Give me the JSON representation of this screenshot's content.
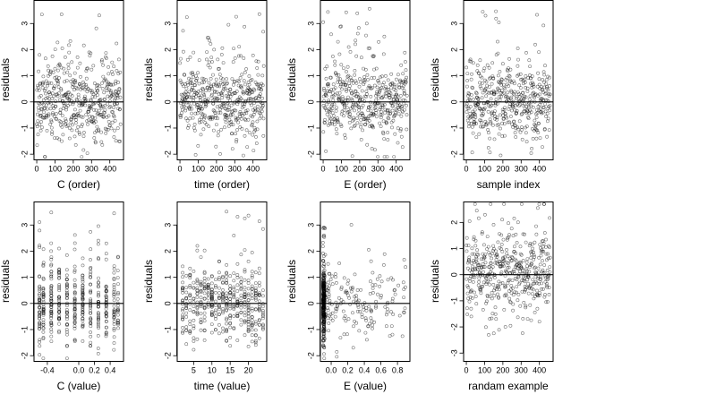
{
  "chart_data": [
    {
      "type": "scatter",
      "xlabel": "C (order)",
      "ylabel": "residuals",
      "xlim": [
        -15,
        475
      ],
      "ylim": [
        -2.2,
        3.9
      ],
      "xticks": [
        0,
        100,
        200,
        300,
        400
      ],
      "xtick_labels": [
        "0",
        "100",
        "200",
        "300",
        "400"
      ],
      "yticks": [
        -2,
        -1,
        0,
        1,
        2,
        3
      ],
      "ytick_labels": [
        "-2",
        "-1",
        "0",
        "1",
        "2",
        "3"
      ],
      "reference_line": 0,
      "x_gen": "order",
      "seed": 11,
      "n": 460
    },
    {
      "type": "scatter",
      "xlabel": "time (order)",
      "ylabel": "residuals",
      "xlim": [
        -15,
        475
      ],
      "ylim": [
        -2.2,
        3.9
      ],
      "xticks": [
        0,
        100,
        200,
        300,
        400
      ],
      "xtick_labels": [
        "0",
        "100",
        "200",
        "300",
        "400"
      ],
      "yticks": [
        -2,
        -1,
        0,
        1,
        2,
        3
      ],
      "ytick_labels": [
        "-2",
        "-1",
        "0",
        "1",
        "2",
        "3"
      ],
      "reference_line": 0,
      "x_gen": "order",
      "seed": 23,
      "n": 460
    },
    {
      "type": "scatter",
      "xlabel": "E (order)",
      "ylabel": "residuals",
      "xlim": [
        -15,
        475
      ],
      "ylim": [
        -2.2,
        3.9
      ],
      "xticks": [
        0,
        100,
        200,
        300,
        400
      ],
      "xtick_labels": [
        "0",
        "100",
        "200",
        "300",
        "400"
      ],
      "yticks": [
        -2,
        -1,
        0,
        1,
        2,
        3
      ],
      "ytick_labels": [
        "-2",
        "-1",
        "0",
        "1",
        "2",
        "3"
      ],
      "reference_line": 0,
      "x_gen": "order",
      "seed": 37,
      "n": 460
    },
    {
      "type": "scatter",
      "xlabel": "sample index",
      "ylabel": "residuals",
      "xlim": [
        -15,
        475
      ],
      "ylim": [
        -2.2,
        3.9
      ],
      "xticks": [
        0,
        100,
        200,
        300,
        400
      ],
      "xtick_labels": [
        "0",
        "100",
        "200",
        "300",
        "400"
      ],
      "yticks": [
        -2,
        -1,
        0,
        1,
        2,
        3
      ],
      "ytick_labels": [
        "-2",
        "-1",
        "0",
        "1",
        "2",
        "3"
      ],
      "reference_line": 0,
      "x_gen": "order",
      "seed": 51,
      "n": 460
    },
    {
      "type": "scatter",
      "xlabel": "C (value)",
      "ylabel": "residuals",
      "xlim": [
        -0.57,
        0.57
      ],
      "ylim": [
        -2.2,
        3.9
      ],
      "xticks": [
        -0.4,
        0.0,
        0.2,
        0.4
      ],
      "xtick_labels": [
        "-0.4",
        "0.0",
        "0.2",
        "0.4"
      ],
      "yticks": [
        -2,
        -1,
        0,
        1,
        2,
        3
      ],
      "ytick_labels": [
        "-2",
        "-1",
        "0",
        "1",
        "2",
        "3"
      ],
      "reference_line": 0,
      "x_gen": "discrete",
      "x_levels": [
        -0.5,
        -0.45,
        -0.35,
        -0.25,
        -0.15,
        -0.05,
        0.05,
        0.15,
        0.25,
        0.35,
        0.45,
        0.5
      ],
      "seed": 67,
      "n": 460
    },
    {
      "type": "scatter",
      "xlabel": "time (value)",
      "ylabel": "residuals",
      "xlim": [
        0.5,
        25
      ],
      "ylim": [
        -2.2,
        3.9
      ],
      "xticks": [
        5,
        10,
        15,
        20
      ],
      "xtick_labels": [
        "5",
        "10",
        "15",
        "20"
      ],
      "yticks": [
        -2,
        -1,
        0,
        1,
        2,
        3
      ],
      "ytick_labels": [
        "-2",
        "-1",
        "0",
        "1",
        "2",
        "3"
      ],
      "reference_line": 0,
      "x_gen": "discrete",
      "x_levels": [
        2,
        3,
        4,
        5,
        6,
        7,
        8,
        9,
        10,
        11,
        12,
        13,
        14,
        15,
        16,
        17,
        18,
        19,
        20,
        21,
        22,
        23,
        24
      ],
      "seed": 79,
      "n": 460
    },
    {
      "type": "scatter",
      "xlabel": "E (value)",
      "ylabel": "residuals",
      "xlim": [
        -0.13,
        0.95
      ],
      "ylim": [
        -2.2,
        3.9
      ],
      "xticks": [
        0.0,
        0.2,
        0.4,
        0.6,
        0.8
      ],
      "xtick_labels": [
        "0.0",
        "0.2",
        "0.4",
        "0.6",
        "0.8"
      ],
      "yticks": [
        -2,
        -1,
        0,
        1,
        2,
        3
      ],
      "ytick_labels": [
        "-2",
        "-1",
        "0",
        "1",
        "2",
        "3"
      ],
      "reference_line": 0,
      "x_gen": "skewed",
      "seed": 91,
      "n": 460
    },
    {
      "type": "scatter",
      "xlabel": "randam example",
      "ylabel": "residuals",
      "xlim": [
        -15,
        475
      ],
      "ylim": [
        -3.3,
        2.8
      ],
      "xticks": [
        0,
        100,
        200,
        300,
        400
      ],
      "xtick_labels": [
        "0",
        "100",
        "200",
        "300",
        "400"
      ],
      "yticks": [
        -3,
        -2,
        -1,
        0,
        1,
        2
      ],
      "ytick_labels": [
        "-3",
        "-2",
        "-1",
        "0",
        "1",
        "2"
      ],
      "reference_line": 0,
      "x_gen": "order",
      "seed": 103,
      "n": 460
    }
  ]
}
